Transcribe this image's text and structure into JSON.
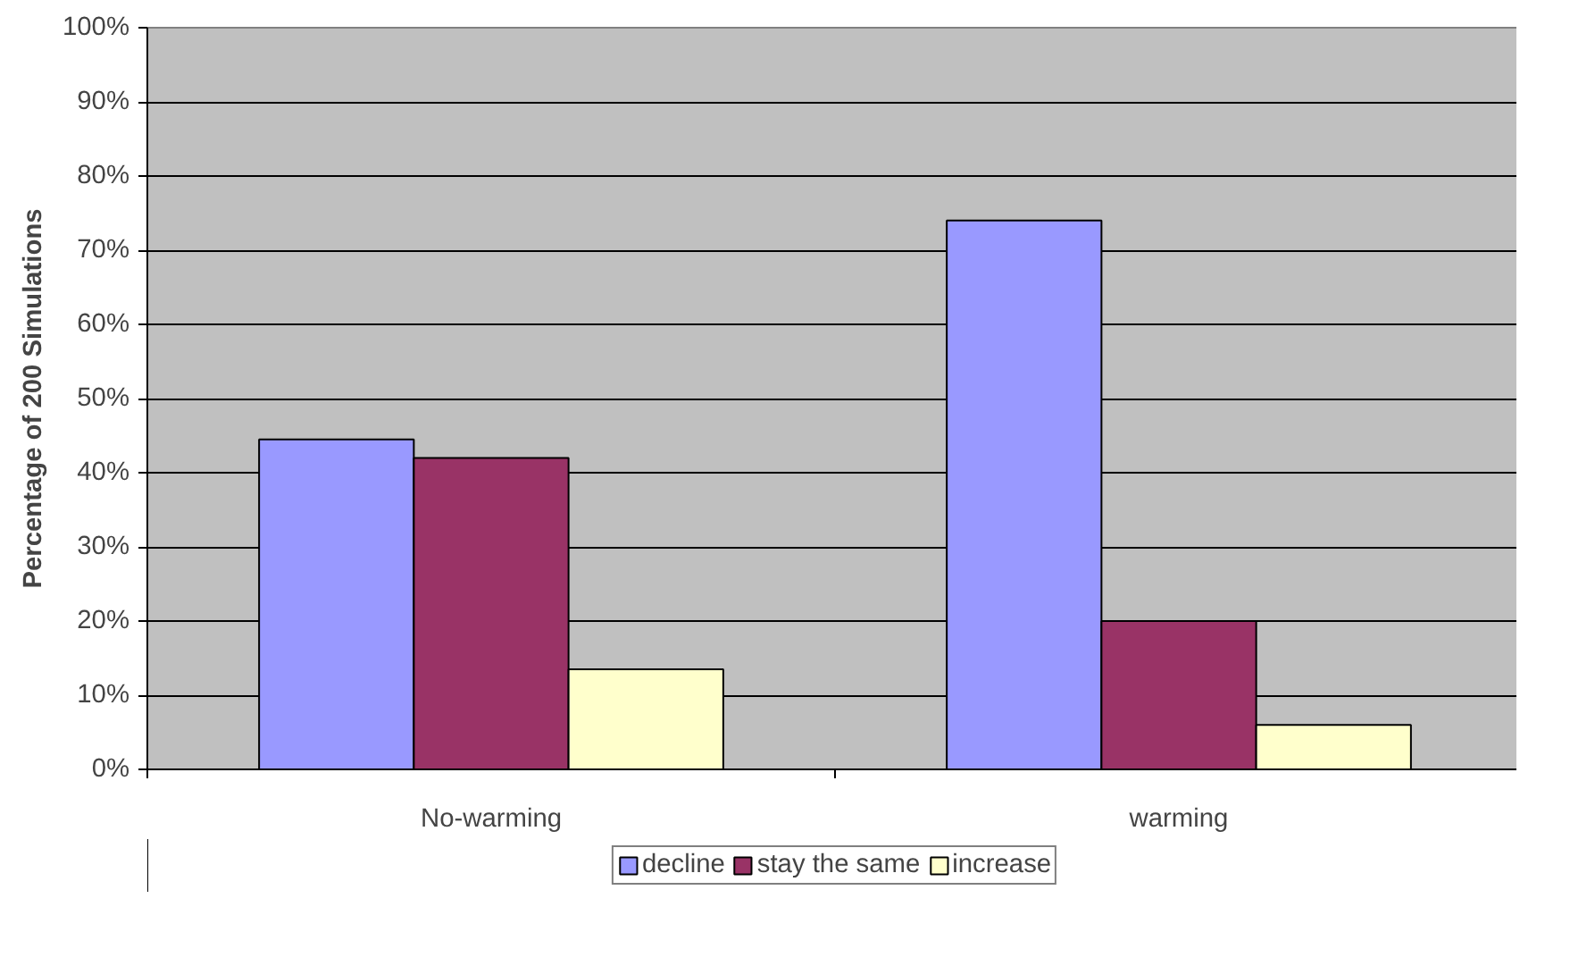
{
  "chart_data": {
    "type": "bar",
    "ylabel": "Percentage of 200 Simulations",
    "categories": [
      "No-warming",
      "warming"
    ],
    "series": [
      {
        "name": "decline",
        "color": "#9999ff",
        "values": [
          44.5,
          74
        ]
      },
      {
        "name": "stay the same",
        "color": "#993366",
        "values": [
          42,
          20
        ]
      },
      {
        "name": "increase",
        "color": "#ffffcc",
        "values": [
          13.5,
          6
        ]
      }
    ],
    "ylim": [
      0,
      100
    ],
    "yticks": [
      {
        "value": 0,
        "label": "0%"
      },
      {
        "value": 10,
        "label": "10%"
      },
      {
        "value": 20,
        "label": "20%"
      },
      {
        "value": 30,
        "label": "30%"
      },
      {
        "value": 40,
        "label": "40%"
      },
      {
        "value": 50,
        "label": "50%"
      },
      {
        "value": 60,
        "label": "60%"
      },
      {
        "value": 70,
        "label": "70%"
      },
      {
        "value": 80,
        "label": "80%"
      },
      {
        "value": 90,
        "label": "90%"
      },
      {
        "value": 100,
        "label": "100%"
      }
    ],
    "grid": "y",
    "legend": "bottom"
  }
}
